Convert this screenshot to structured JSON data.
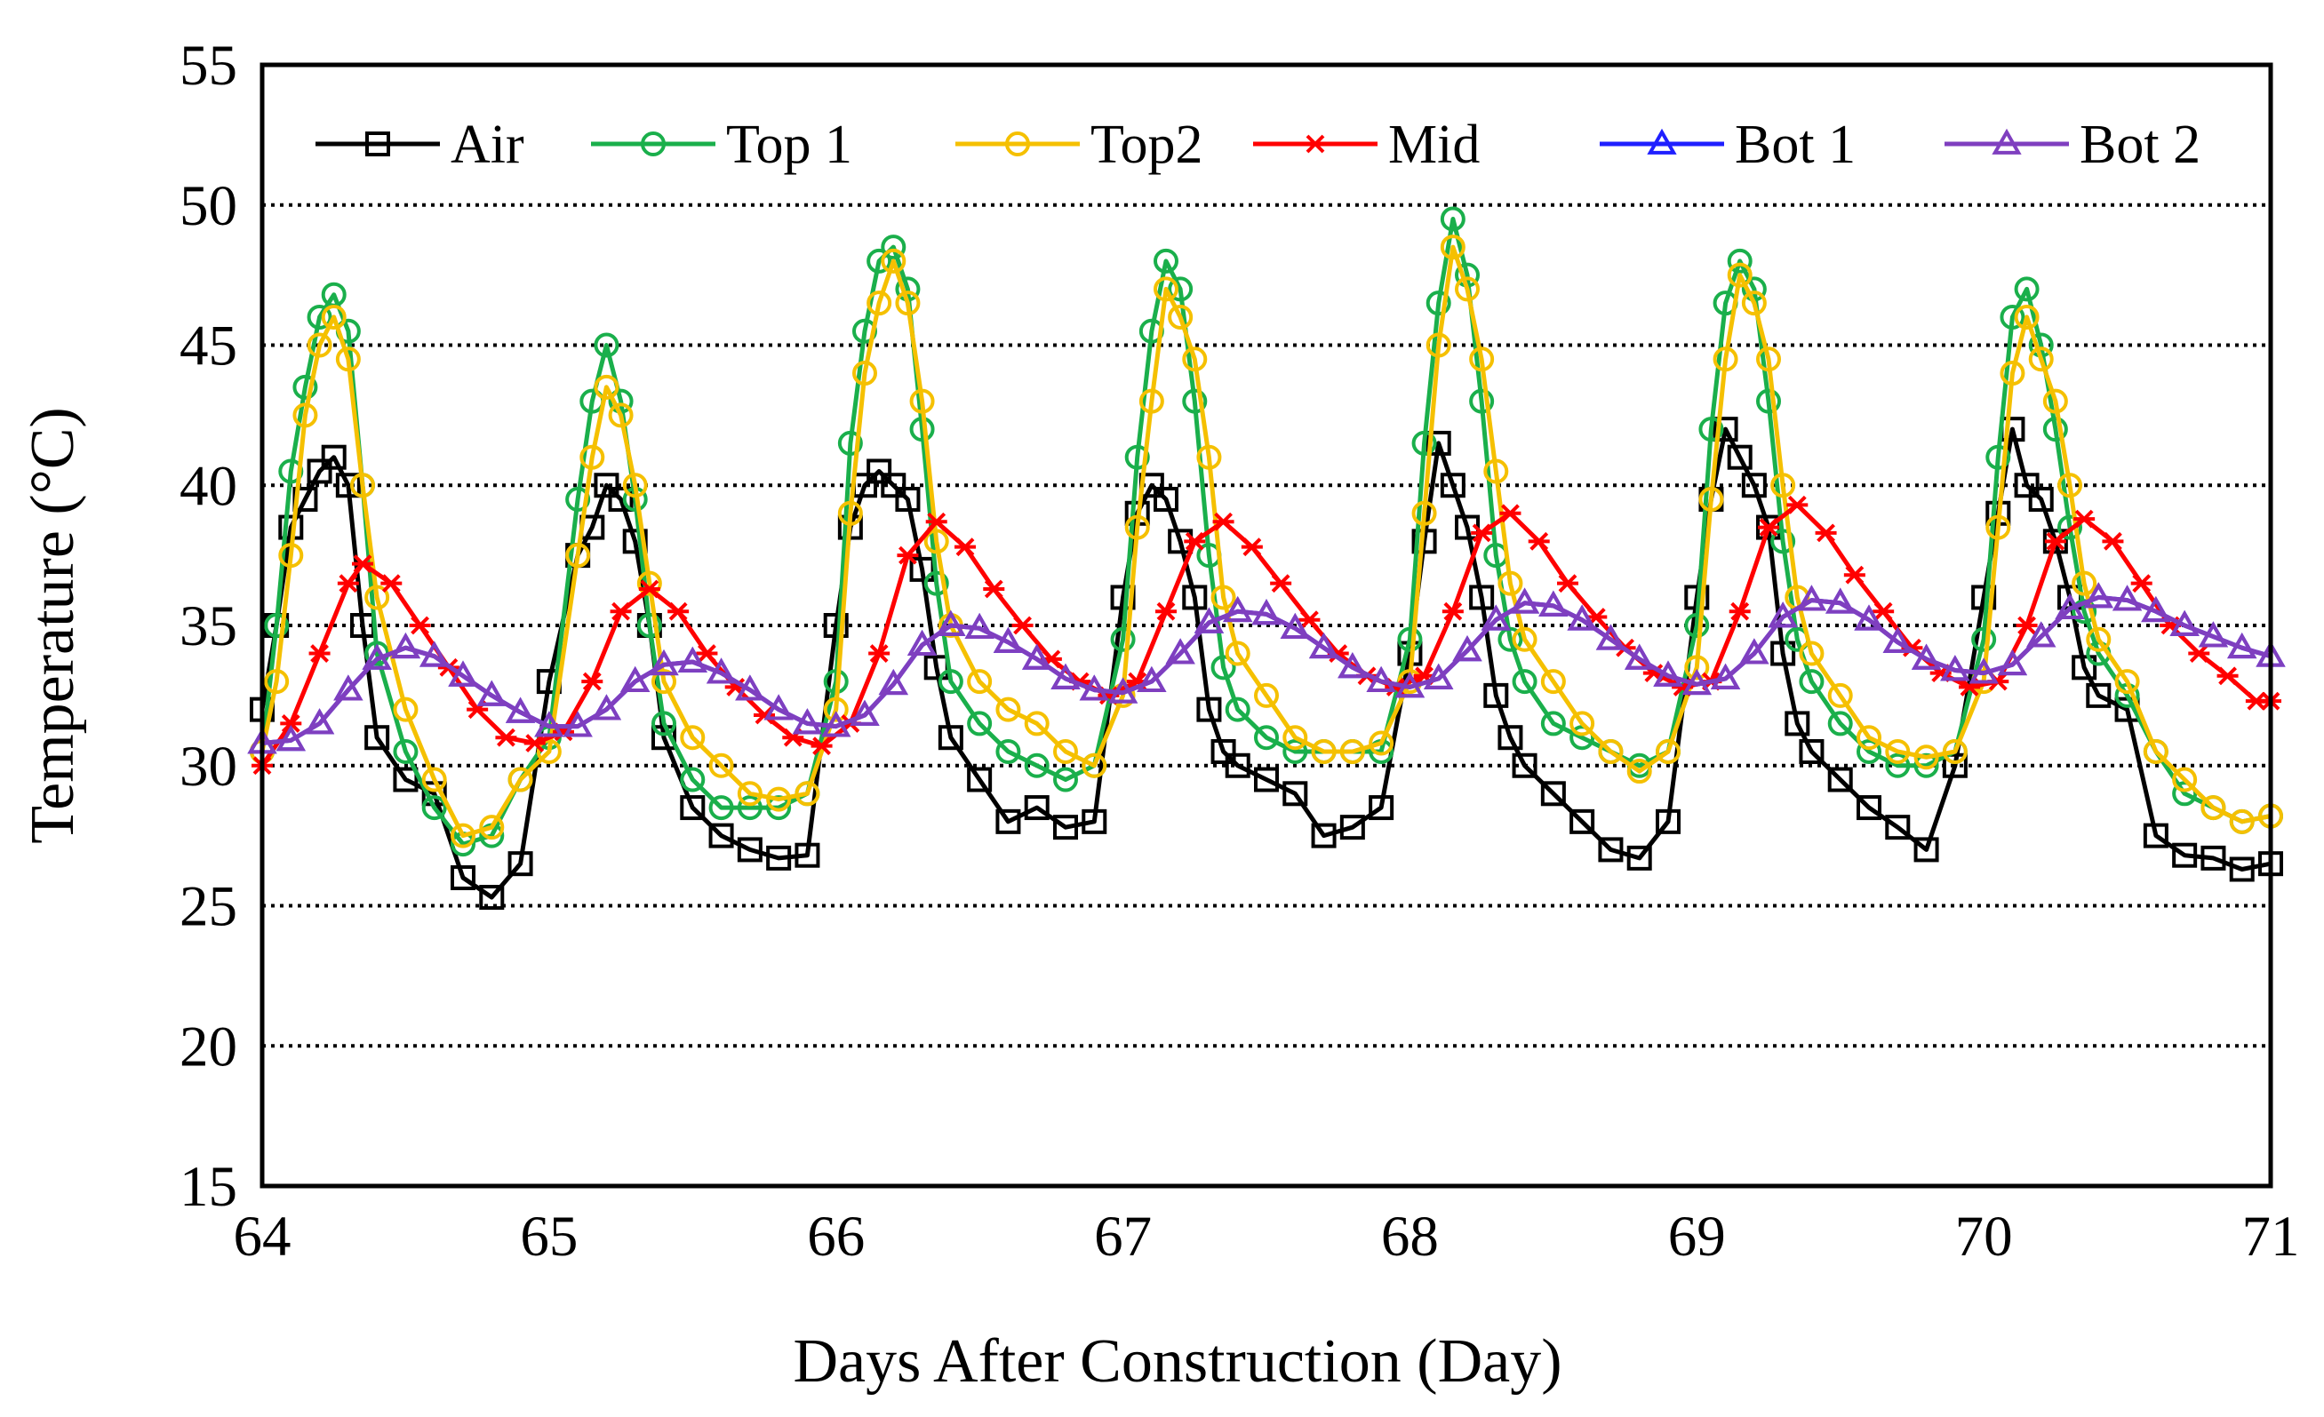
{
  "chart_data": {
    "type": "line",
    "title": "",
    "xlabel": "Days After Construction (Day)",
    "ylabel": "Temperature (°C)",
    "xlim": [
      64,
      71
    ],
    "ylim": [
      15,
      55
    ],
    "x_ticks": [
      64,
      65,
      66,
      67,
      68,
      69,
      70,
      71
    ],
    "y_ticks": [
      15,
      20,
      25,
      30,
      35,
      40,
      45,
      50,
      55
    ],
    "grid": "horizontal dotted",
    "legend_position": "top",
    "series": [
      {
        "name": "Air",
        "color": "#000000",
        "marker": "square",
        "x": [
          64.0,
          64.05,
          64.1,
          64.15,
          64.2,
          64.25,
          64.3,
          64.35,
          64.4,
          64.5,
          64.6,
          64.7,
          64.8,
          64.9,
          65.0,
          65.1,
          65.15,
          65.2,
          65.25,
          65.3,
          65.35,
          65.4,
          65.5,
          65.6,
          65.7,
          65.8,
          65.9,
          66.0,
          66.05,
          66.1,
          66.15,
          66.2,
          66.25,
          66.3,
          66.35,
          66.4,
          66.5,
          66.6,
          66.7,
          66.8,
          66.9,
          67.0,
          67.05,
          67.1,
          67.15,
          67.2,
          67.25,
          67.3,
          67.35,
          67.4,
          67.5,
          67.6,
          67.7,
          67.8,
          67.9,
          68.0,
          68.05,
          68.1,
          68.15,
          68.2,
          68.25,
          68.3,
          68.35,
          68.4,
          68.5,
          68.6,
          68.7,
          68.8,
          68.9,
          69.0,
          69.05,
          69.1,
          69.15,
          69.2,
          69.25,
          69.3,
          69.35,
          69.4,
          69.5,
          69.6,
          69.7,
          69.8,
          69.9,
          70.0,
          70.05,
          70.1,
          70.15,
          70.2,
          70.25,
          70.3,
          70.35,
          70.4,
          70.5,
          70.6,
          70.7,
          70.8,
          70.9,
          71.0
        ],
        "y": [
          32.0,
          35.0,
          38.5,
          39.5,
          40.5,
          41.0,
          40.0,
          35.0,
          31.0,
          29.5,
          29.0,
          26.0,
          25.3,
          26.5,
          33.0,
          37.5,
          38.5,
          40.0,
          39.5,
          38.0,
          35.0,
          31.0,
          28.5,
          27.5,
          27.0,
          26.7,
          26.8,
          35.0,
          38.5,
          40.0,
          40.5,
          40.0,
          39.5,
          37.0,
          33.5,
          31.0,
          29.5,
          28.0,
          28.5,
          27.8,
          28.0,
          36.0,
          39.0,
          40.0,
          39.5,
          38.0,
          36.0,
          32.0,
          30.5,
          30.0,
          29.5,
          29.0,
          27.5,
          27.8,
          28.5,
          34.0,
          38.0,
          41.5,
          40.0,
          38.5,
          36.0,
          32.5,
          31.0,
          30.0,
          29.0,
          28.0,
          27.0,
          26.7,
          28.0,
          36.0,
          39.5,
          42.0,
          41.0,
          40.0,
          38.5,
          34.0,
          31.5,
          30.5,
          29.5,
          28.5,
          27.8,
          27.0,
          30.0,
          36.0,
          39.0,
          42.0,
          40.0,
          39.5,
          38.0,
          36.0,
          33.5,
          32.5,
          32.0,
          27.5,
          26.8,
          26.7,
          26.3,
          26.5
        ]
      },
      {
        "name": "Top 1",
        "color": "#1aaf4b",
        "marker": "circle",
        "x": [
          64.0,
          64.05,
          64.1,
          64.15,
          64.2,
          64.25,
          64.3,
          64.35,
          64.4,
          64.5,
          64.6,
          64.7,
          64.8,
          64.9,
          65.0,
          65.1,
          65.15,
          65.2,
          65.25,
          65.3,
          65.35,
          65.4,
          65.5,
          65.6,
          65.7,
          65.8,
          65.9,
          66.0,
          66.05,
          66.1,
          66.15,
          66.2,
          66.25,
          66.3,
          66.35,
          66.4,
          66.5,
          66.6,
          66.7,
          66.8,
          66.9,
          67.0,
          67.05,
          67.1,
          67.15,
          67.2,
          67.25,
          67.3,
          67.35,
          67.4,
          67.5,
          67.6,
          67.7,
          67.8,
          67.9,
          68.0,
          68.05,
          68.1,
          68.15,
          68.2,
          68.25,
          68.3,
          68.35,
          68.4,
          68.5,
          68.6,
          68.7,
          68.8,
          68.9,
          69.0,
          69.05,
          69.1,
          69.15,
          69.2,
          69.25,
          69.3,
          69.35,
          69.4,
          69.5,
          69.6,
          69.7,
          69.8,
          69.9,
          70.0,
          70.05,
          70.1,
          70.15,
          70.2,
          70.25,
          70.3,
          70.35,
          70.4,
          70.5,
          70.6,
          70.7,
          70.8,
          70.9,
          71.0
        ],
        "y": [
          30.5,
          35.0,
          40.5,
          43.5,
          46.0,
          46.8,
          45.5,
          40.0,
          34.0,
          30.5,
          28.5,
          27.2,
          27.5,
          29.5,
          31.0,
          39.5,
          43.0,
          45.0,
          43.0,
          39.5,
          35.0,
          31.5,
          29.5,
          28.5,
          28.5,
          28.5,
          29.0,
          33.0,
          41.5,
          45.5,
          48.0,
          48.5,
          47.0,
          42.0,
          36.5,
          33.0,
          31.5,
          30.5,
          30.0,
          29.5,
          30.0,
          34.5,
          41.0,
          45.5,
          48.0,
          47.0,
          43.0,
          37.5,
          33.5,
          32.0,
          31.0,
          30.5,
          30.5,
          30.5,
          30.5,
          34.5,
          41.5,
          46.5,
          49.5,
          47.5,
          43.0,
          37.5,
          34.5,
          33.0,
          31.5,
          31.0,
          30.5,
          30.0,
          30.5,
          35.0,
          42.0,
          46.5,
          48.0,
          47.0,
          43.0,
          38.0,
          34.5,
          33.0,
          31.5,
          30.5,
          30.0,
          30.0,
          30.5,
          34.5,
          41.0,
          46.0,
          47.0,
          45.0,
          42.0,
          38.5,
          35.5,
          34.0,
          32.5,
          30.5,
          29.0,
          28.5,
          28.0,
          28.2
        ]
      },
      {
        "name": "Top2",
        "color": "#f5c000",
        "marker": "circle",
        "x": [
          64.0,
          64.05,
          64.1,
          64.15,
          64.2,
          64.25,
          64.3,
          64.35,
          64.4,
          64.5,
          64.6,
          64.7,
          64.8,
          64.9,
          65.0,
          65.1,
          65.15,
          65.2,
          65.25,
          65.3,
          65.35,
          65.4,
          65.5,
          65.6,
          65.7,
          65.8,
          65.9,
          66.0,
          66.05,
          66.1,
          66.15,
          66.2,
          66.25,
          66.3,
          66.35,
          66.4,
          66.5,
          66.6,
          66.7,
          66.8,
          66.9,
          67.0,
          67.05,
          67.1,
          67.15,
          67.2,
          67.25,
          67.3,
          67.35,
          67.4,
          67.5,
          67.6,
          67.7,
          67.8,
          67.9,
          68.0,
          68.05,
          68.1,
          68.15,
          68.2,
          68.25,
          68.3,
          68.35,
          68.4,
          68.5,
          68.6,
          68.7,
          68.8,
          68.9,
          69.0,
          69.05,
          69.1,
          69.15,
          69.2,
          69.25,
          69.3,
          69.35,
          69.4,
          69.5,
          69.6,
          69.7,
          69.8,
          69.9,
          70.0,
          70.05,
          70.1,
          70.15,
          70.2,
          70.25,
          70.3,
          70.35,
          70.4,
          70.5,
          70.6,
          70.7,
          70.8,
          70.9,
          71.0
        ],
        "y": [
          30.5,
          33.0,
          37.5,
          42.5,
          45.0,
          46.0,
          44.5,
          40.0,
          36.0,
          32.0,
          29.5,
          27.5,
          27.8,
          29.5,
          30.5,
          37.5,
          41.0,
          43.5,
          42.5,
          40.0,
          36.5,
          33.0,
          31.0,
          30.0,
          29.0,
          28.8,
          29.0,
          32.0,
          39.0,
          44.0,
          46.5,
          48.0,
          46.5,
          43.0,
          38.0,
          35.0,
          33.0,
          32.0,
          31.5,
          30.5,
          30.0,
          32.5,
          38.5,
          43.0,
          47.0,
          46.0,
          44.5,
          41.0,
          36.0,
          34.0,
          32.5,
          31.0,
          30.5,
          30.5,
          30.8,
          33.0,
          39.0,
          45.0,
          48.5,
          47.0,
          44.5,
          40.5,
          36.5,
          34.5,
          33.0,
          31.5,
          30.5,
          29.8,
          30.5,
          33.5,
          39.5,
          44.5,
          47.5,
          46.5,
          44.5,
          40.0,
          36.0,
          34.0,
          32.5,
          31.0,
          30.5,
          30.3,
          30.5,
          33.0,
          38.5,
          44.0,
          46.0,
          44.5,
          43.0,
          40.0,
          36.5,
          34.5,
          33.0,
          30.5,
          29.5,
          28.5,
          28.0,
          28.2
        ]
      },
      {
        "name": "Mid",
        "color": "#ff0000",
        "marker": "asterisk",
        "x": [
          64.0,
          64.1,
          64.2,
          64.3,
          64.35,
          64.45,
          64.55,
          64.65,
          64.75,
          64.85,
          64.95,
          65.05,
          65.15,
          65.25,
          65.35,
          65.45,
          65.55,
          65.65,
          65.75,
          65.85,
          65.95,
          66.05,
          66.15,
          66.25,
          66.35,
          66.45,
          66.55,
          66.65,
          66.75,
          66.85,
          66.95,
          67.05,
          67.15,
          67.25,
          67.35,
          67.45,
          67.55,
          67.65,
          67.75,
          67.85,
          67.95,
          68.05,
          68.15,
          68.25,
          68.35,
          68.45,
          68.55,
          68.65,
          68.75,
          68.85,
          68.95,
          69.05,
          69.15,
          69.25,
          69.35,
          69.45,
          69.55,
          69.65,
          69.75,
          69.85,
          69.95,
          70.05,
          70.15,
          70.25,
          70.35,
          70.45,
          70.55,
          70.65,
          70.75,
          70.85,
          70.95,
          71.0
        ],
        "y": [
          30.0,
          31.5,
          34.0,
          36.5,
          37.2,
          36.5,
          35.0,
          33.5,
          32.0,
          31.0,
          30.8,
          31.2,
          33.0,
          35.5,
          36.3,
          35.5,
          34.0,
          32.8,
          31.8,
          31.0,
          30.7,
          31.5,
          34.0,
          37.5,
          38.7,
          37.8,
          36.3,
          35.0,
          33.8,
          33.0,
          32.5,
          33.0,
          35.5,
          38.0,
          38.7,
          37.8,
          36.5,
          35.2,
          34.0,
          33.2,
          32.8,
          33.2,
          35.5,
          38.3,
          39.0,
          38.0,
          36.5,
          35.3,
          34.2,
          33.3,
          32.8,
          33.0,
          35.5,
          38.5,
          39.3,
          38.3,
          36.8,
          35.5,
          34.2,
          33.3,
          32.8,
          33.0,
          35.0,
          38.0,
          38.8,
          38.0,
          36.5,
          35.0,
          34.0,
          33.2,
          32.3,
          32.3
        ]
      },
      {
        "name": "Bot 1",
        "color": "#1f1fff",
        "marker": "triangle",
        "x": [
          64.0,
          64.1,
          64.2,
          64.3,
          64.4,
          64.5,
          64.6,
          64.7,
          64.8,
          64.9,
          65.0,
          65.1,
          65.2,
          65.3,
          65.4,
          65.5,
          65.6,
          65.7,
          65.8,
          65.9,
          66.0,
          66.1,
          66.2,
          66.3,
          66.4,
          66.5,
          66.6,
          66.7,
          66.8,
          66.9,
          67.0,
          67.1,
          67.2,
          67.3,
          67.4,
          67.5,
          67.6,
          67.7,
          67.8,
          67.9,
          68.0,
          68.1,
          68.2,
          68.3,
          68.4,
          68.5,
          68.6,
          68.7,
          68.8,
          68.9,
          69.0,
          69.1,
          69.2,
          69.3,
          69.4,
          69.5,
          69.6,
          69.7,
          69.8,
          69.9,
          70.0,
          70.1,
          70.2,
          70.3,
          70.4,
          70.5,
          70.6,
          70.7,
          70.8,
          70.9,
          71.0
        ],
        "y": [
          30.8,
          30.9,
          31.5,
          32.7,
          33.8,
          34.2,
          33.9,
          33.2,
          32.5,
          31.9,
          31.4,
          31.4,
          32.0,
          33.0,
          33.6,
          33.7,
          33.3,
          32.7,
          32.0,
          31.5,
          31.4,
          31.8,
          32.9,
          34.3,
          35.0,
          34.9,
          34.4,
          33.8,
          33.1,
          32.7,
          32.6,
          33.0,
          34.0,
          35.1,
          35.5,
          35.4,
          34.9,
          34.2,
          33.5,
          33.0,
          32.8,
          33.1,
          34.1,
          35.2,
          35.8,
          35.7,
          35.2,
          34.5,
          33.8,
          33.2,
          32.9,
          33.1,
          34.0,
          35.3,
          35.9,
          35.8,
          35.2,
          34.4,
          33.8,
          33.4,
          33.3,
          33.6,
          34.6,
          35.6,
          36.0,
          35.9,
          35.5,
          35.0,
          34.6,
          34.2,
          33.9
        ]
      },
      {
        "name": "Bot 2",
        "color": "#7f3fbf",
        "marker": "triangle",
        "x": [
          64.0,
          64.1,
          64.2,
          64.3,
          64.4,
          64.5,
          64.6,
          64.7,
          64.8,
          64.9,
          65.0,
          65.1,
          65.2,
          65.3,
          65.4,
          65.5,
          65.6,
          65.7,
          65.8,
          65.9,
          66.0,
          66.1,
          66.2,
          66.3,
          66.4,
          66.5,
          66.6,
          66.7,
          66.8,
          66.9,
          67.0,
          67.1,
          67.2,
          67.3,
          67.4,
          67.5,
          67.6,
          67.7,
          67.8,
          67.9,
          68.0,
          68.1,
          68.2,
          68.3,
          68.4,
          68.5,
          68.6,
          68.7,
          68.8,
          68.9,
          69.0,
          69.1,
          69.2,
          69.3,
          69.4,
          69.5,
          69.6,
          69.7,
          69.8,
          69.9,
          70.0,
          70.1,
          70.2,
          70.3,
          70.4,
          70.5,
          70.6,
          70.7,
          70.8,
          70.9,
          71.0
        ],
        "y": [
          30.8,
          30.9,
          31.5,
          32.7,
          33.8,
          34.2,
          33.9,
          33.2,
          32.5,
          31.9,
          31.4,
          31.4,
          32.0,
          33.0,
          33.6,
          33.7,
          33.3,
          32.7,
          32.0,
          31.5,
          31.4,
          31.8,
          32.9,
          34.3,
          35.0,
          34.9,
          34.4,
          33.8,
          33.1,
          32.7,
          32.6,
          33.0,
          34.0,
          35.1,
          35.5,
          35.4,
          34.9,
          34.2,
          33.5,
          33.0,
          32.8,
          33.1,
          34.1,
          35.2,
          35.8,
          35.7,
          35.2,
          34.5,
          33.8,
          33.2,
          32.9,
          33.1,
          34.0,
          35.3,
          35.9,
          35.8,
          35.2,
          34.4,
          33.8,
          33.4,
          33.3,
          33.6,
          34.6,
          35.6,
          36.0,
          35.9,
          35.5,
          35.0,
          34.6,
          34.2,
          33.9
        ]
      }
    ]
  }
}
